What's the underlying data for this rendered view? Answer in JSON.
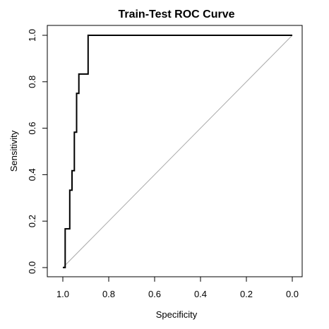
{
  "chart_data": {
    "type": "line",
    "title": "Train-Test ROC Curve",
    "xlabel": "Specificity",
    "ylabel": "Sensitivity",
    "xlim": [
      1.0,
      0.0
    ],
    "ylim": [
      0.0,
      1.0
    ],
    "x_reversed": true,
    "grid": false,
    "legend": "none",
    "x_ticks": [
      1.0,
      0.8,
      0.6,
      0.4,
      0.2,
      0.0
    ],
    "x_tick_labels": [
      "1.0",
      "0.8",
      "0.6",
      "0.4",
      "0.2",
      "0.0"
    ],
    "y_ticks": [
      0.0,
      0.2,
      0.4,
      0.6,
      0.8,
      1.0
    ],
    "y_tick_labels": [
      "0.0",
      "0.2",
      "0.4",
      "0.6",
      "0.8",
      "1.0"
    ],
    "reference_line": {
      "x": [
        1.0,
        0.0
      ],
      "y": [
        0.0,
        1.0
      ],
      "color": "#aaaaaa"
    },
    "series": [
      {
        "color": "#000000",
        "x": [
          1.0,
          0.99,
          0.99,
          0.97,
          0.97,
          0.96,
          0.96,
          0.95,
          0.95,
          0.94,
          0.94,
          0.93,
          0.93,
          0.91,
          0.91,
          0.89,
          0.89,
          0.0
        ],
        "y": [
          0.0,
          0.0,
          0.167,
          0.167,
          0.333,
          0.333,
          0.417,
          0.417,
          0.583,
          0.583,
          0.75,
          0.75,
          0.833,
          0.833,
          0.833,
          0.833,
          1.0,
          1.0
        ]
      }
    ]
  }
}
